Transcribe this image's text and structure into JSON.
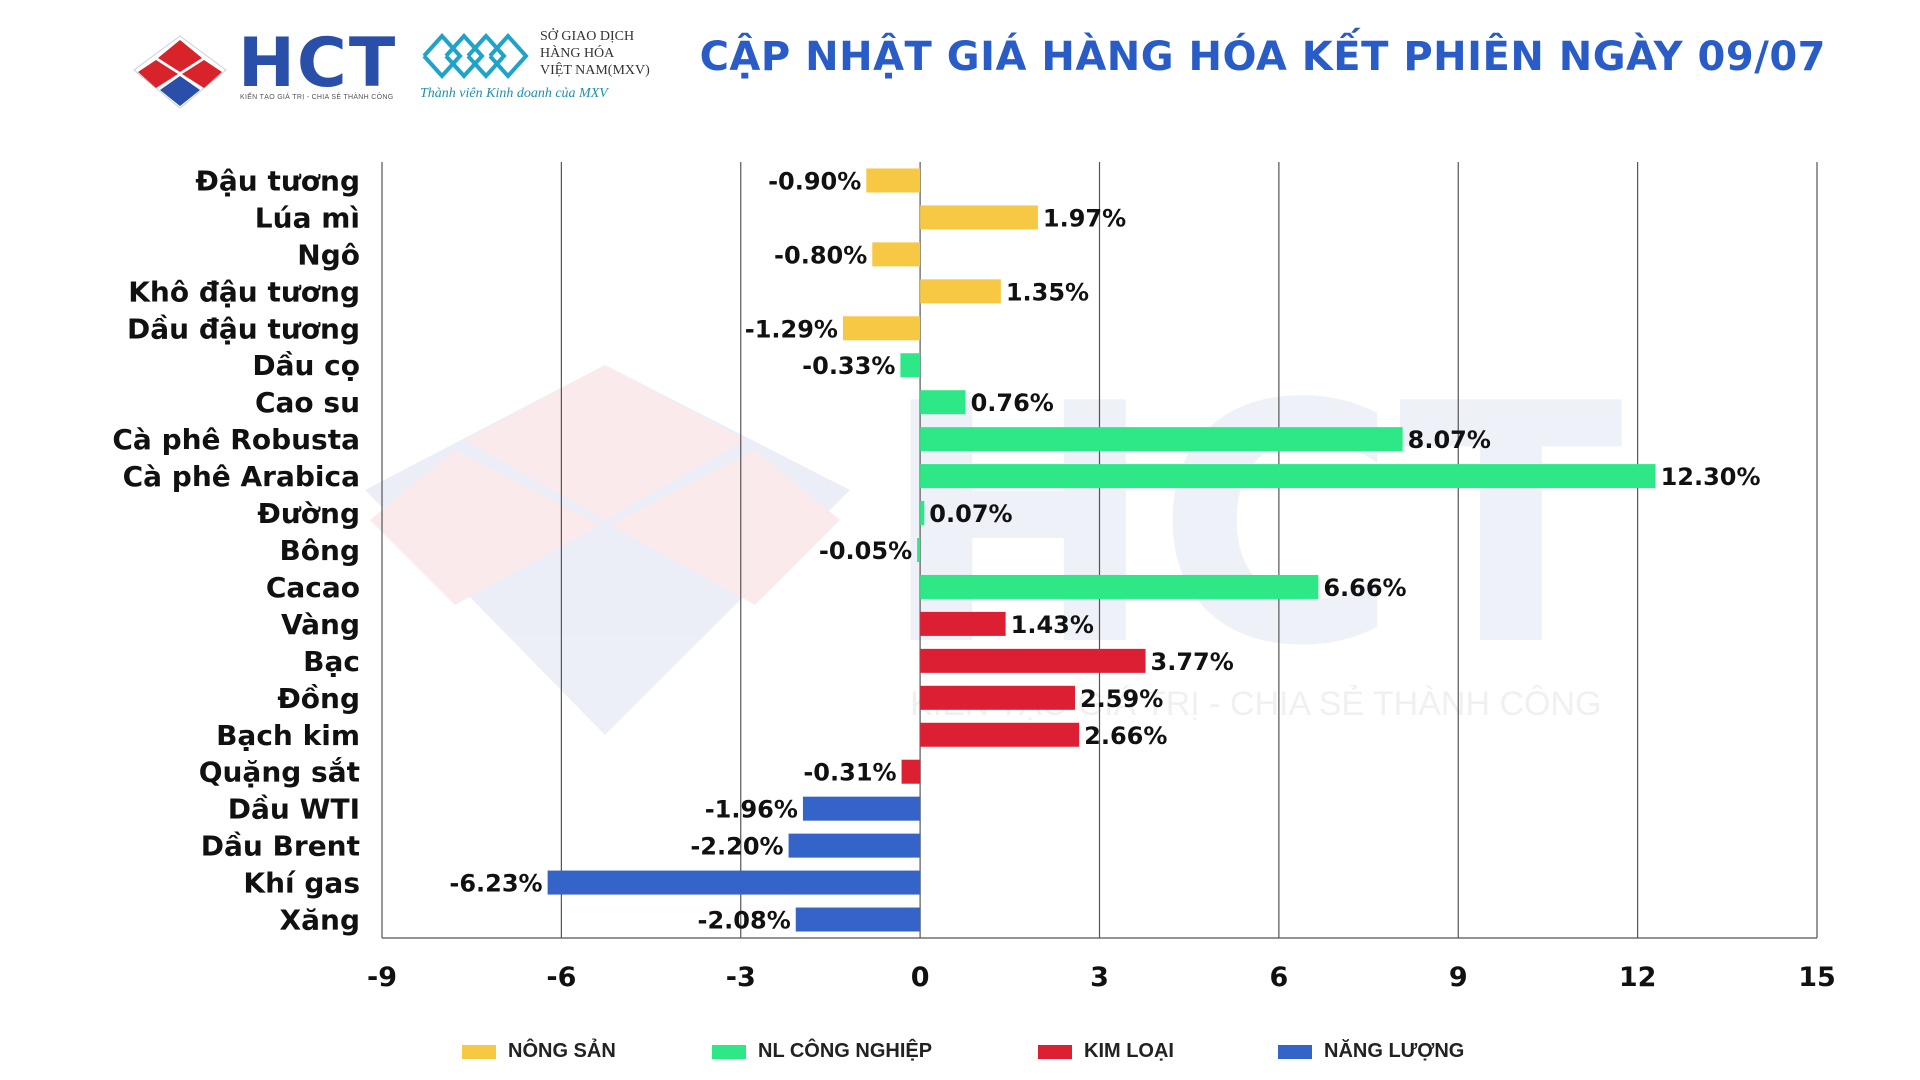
{
  "header": {
    "hct_logo_text": "HCT",
    "hct_tagline": "KIẾN TẠO GIÁ TRỊ - CHIA SẺ THÀNH CÔNG",
    "mxv_name_lines": [
      "SỞ GIAO DỊCH",
      "HÀNG HÓA",
      "VIỆT NAM(MXV)"
    ],
    "mxv_member": "Thành viên Kinh doanh của MXV",
    "title": "CẬP NHẬT GIÁ HÀNG HÓA KẾT PHIÊN NGÀY 09/07"
  },
  "watermark": {
    "text": "HCT",
    "tagline": "KIẾN TẠO GIÁ TRỊ - CHIA SẺ THÀNH CÔNG"
  },
  "colors": {
    "nong_san": "#f7c843",
    "nl_cong_nghiep": "#2ee888",
    "kim_loai": "#dc1f33",
    "nang_luong": "#3564c8",
    "title": "#2a5cc8"
  },
  "chart_data": {
    "type": "bar",
    "orientation": "horizontal",
    "categories": [
      "Đậu tương",
      "Lúa mì",
      "Ngô",
      "Khô đậu tương",
      "Dầu đậu tương",
      "Dầu cọ",
      "Cao su",
      "Cà phê Robusta",
      "Cà phê Arabica",
      "Đường",
      "Bông",
      "Cacao",
      "Vàng",
      "Bạc",
      "Đồng",
      "Bạch kim",
      "Quặng sắt",
      "Dầu WTI",
      "Dầu Brent",
      "Khí gas",
      "Xăng"
    ],
    "values": [
      -0.9,
      1.97,
      -0.8,
      1.35,
      -1.29,
      -0.33,
      0.76,
      8.07,
      12.3,
      0.07,
      -0.05,
      6.66,
      1.43,
      3.77,
      2.59,
      2.66,
      -0.31,
      -1.96,
      -2.2,
      -6.23,
      -2.08
    ],
    "labels": [
      "-0.90%",
      "1.97%",
      "-0.80%",
      "1.35%",
      "-1.29%",
      "-0.33%",
      "0.76%",
      "8.07%",
      "12.30%",
      "0.07%",
      "-0.05%",
      "6.66%",
      "1.43%",
      "3.77%",
      "2.59%",
      "2.66%",
      "-0.31%",
      "-1.96%",
      "-2.20%",
      "-6.23%",
      "-2.08%"
    ],
    "groups": [
      "nong_san",
      "nong_san",
      "nong_san",
      "nong_san",
      "nong_san",
      "nl_cong_nghiep",
      "nl_cong_nghiep",
      "nl_cong_nghiep",
      "nl_cong_nghiep",
      "nl_cong_nghiep",
      "nl_cong_nghiep",
      "nl_cong_nghiep",
      "kim_loai",
      "kim_loai",
      "kim_loai",
      "kim_loai",
      "kim_loai",
      "nang_luong",
      "nang_luong",
      "nang_luong",
      "nang_luong"
    ],
    "xlim": [
      -9,
      15
    ],
    "xticks": [
      -9,
      -6,
      -3,
      0,
      3,
      6,
      9,
      12,
      15
    ],
    "grid": "vertical",
    "legend": [
      {
        "key": "nong_san",
        "label": "NÔNG SẢN"
      },
      {
        "key": "nl_cong_nghiep",
        "label": "NL CÔNG NGHIỆP"
      },
      {
        "key": "kim_loai",
        "label": "KIM LOẠI"
      },
      {
        "key": "nang_luong",
        "label": "NĂNG LƯỢNG"
      }
    ],
    "legend_position": "bottom"
  }
}
